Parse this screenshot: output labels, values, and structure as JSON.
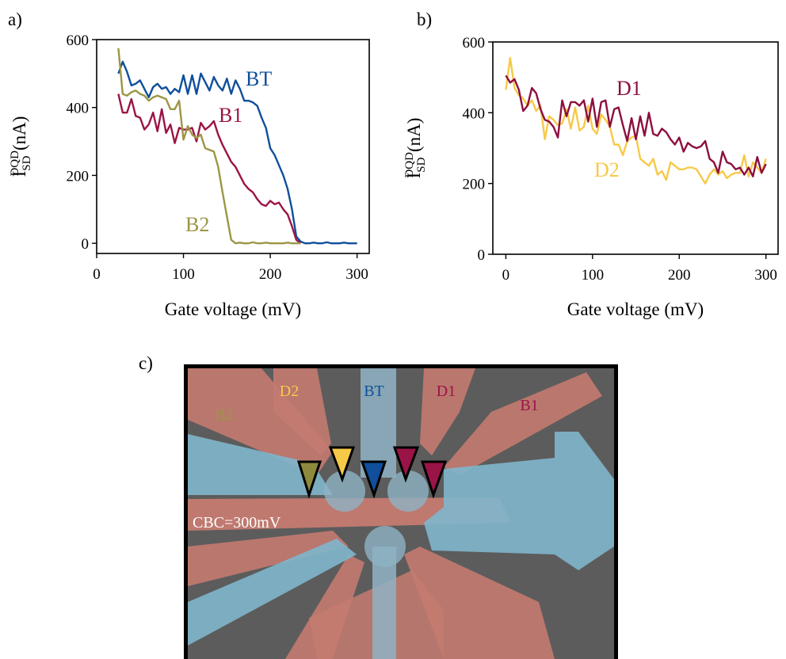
{
  "chart_data": [
    {
      "type": "line",
      "panel_label": "a)",
      "xlabel": "Gate voltage (mV)",
      "ylabel": {
        "base": "I",
        "sub": "SD",
        "sup": "DQD",
        "unit": "(nA)"
      },
      "xlim": [
        0,
        314
      ],
      "ylim": [
        -30,
        600
      ],
      "xticks": [
        0,
        100,
        200,
        300
      ],
      "yticks": [
        0,
        200,
        400,
        600
      ],
      "series": [
        {
          "name": "BT",
          "color": "#0f4f9c",
          "x": [
            25,
            30,
            35,
            40,
            45,
            50,
            55,
            60,
            65,
            70,
            75,
            80,
            85,
            90,
            95,
            100,
            105,
            110,
            115,
            120,
            125,
            130,
            135,
            140,
            145,
            150,
            155,
            160,
            165,
            170,
            175,
            180,
            185,
            190,
            195,
            200,
            205,
            210,
            215,
            220,
            225,
            230,
            235,
            240,
            245,
            250,
            255,
            260,
            265,
            270,
            275,
            280,
            285,
            290,
            295,
            300
          ],
          "values": [
            500,
            535,
            505,
            465,
            470,
            480,
            455,
            430,
            460,
            470,
            455,
            460,
            440,
            455,
            445,
            495,
            440,
            495,
            440,
            500,
            475,
            450,
            490,
            465,
            450,
            485,
            440,
            480,
            455,
            420,
            420,
            415,
            405,
            370,
            340,
            280,
            260,
            230,
            200,
            160,
            100,
            20,
            5,
            0,
            0,
            2,
            0,
            0,
            3,
            0,
            0,
            0,
            2,
            0,
            0,
            0
          ]
        },
        {
          "name": "B1",
          "color": "#9b1447",
          "x": [
            25,
            30,
            35,
            40,
            45,
            50,
            55,
            60,
            65,
            70,
            75,
            80,
            85,
            90,
            95,
            100,
            105,
            110,
            115,
            120,
            125,
            130,
            135,
            140,
            145,
            150,
            155,
            160,
            165,
            170,
            175,
            180,
            185,
            190,
            195,
            200,
            205,
            210,
            215,
            220,
            225,
            230,
            235
          ],
          "values": [
            440,
            385,
            385,
            425,
            375,
            370,
            335,
            350,
            385,
            330,
            395,
            325,
            350,
            295,
            340,
            335,
            335,
            340,
            300,
            355,
            335,
            345,
            360,
            320,
            290,
            265,
            240,
            225,
            200,
            175,
            160,
            150,
            130,
            115,
            110,
            125,
            115,
            120,
            100,
            85,
            50,
            10,
            0
          ]
        },
        {
          "name": "B2",
          "color": "#9c9645",
          "x": [
            25,
            30,
            35,
            40,
            45,
            50,
            55,
            60,
            65,
            70,
            75,
            80,
            85,
            90,
            95,
            100,
            105,
            110,
            115,
            120,
            125,
            130,
            135,
            140,
            145,
            150,
            155,
            160,
            165,
            170,
            175,
            180,
            185,
            190,
            195,
            200,
            205,
            210,
            215,
            220,
            225,
            230,
            235
          ],
          "values": [
            575,
            440,
            435,
            445,
            450,
            440,
            435,
            420,
            430,
            435,
            430,
            425,
            395,
            395,
            420,
            305,
            345,
            320,
            310,
            320,
            280,
            275,
            270,
            225,
            150,
            80,
            10,
            0,
            2,
            0,
            0,
            3,
            0,
            0,
            2,
            0,
            0,
            0,
            0,
            2,
            0,
            0,
            0
          ]
        }
      ]
    },
    {
      "type": "line",
      "panel_label": "b)",
      "xlabel": "Gate voltage (mV)",
      "ylabel": {
        "base": "I",
        "sub": "SD",
        "sup": "DQD",
        "unit": "(nA)"
      },
      "xlim": [
        -15,
        314
      ],
      "ylim": [
        0,
        600
      ],
      "xticks": [
        0,
        100,
        200,
        300
      ],
      "yticks": [
        0,
        200,
        400,
        600
      ],
      "x": [
        0,
        5,
        10,
        15,
        20,
        25,
        30,
        35,
        40,
        45,
        50,
        55,
        60,
        65,
        70,
        75,
        80,
        85,
        90,
        95,
        100,
        105,
        110,
        115,
        120,
        125,
        130,
        135,
        140,
        145,
        150,
        155,
        160,
        165,
        170,
        175,
        180,
        185,
        190,
        195,
        200,
        205,
        210,
        215,
        220,
        225,
        230,
        235,
        240,
        245,
        250,
        255,
        260,
        265,
        270,
        275,
        280,
        285,
        290,
        295,
        300
      ],
      "series": [
        {
          "name": "D2",
          "color": "#f7c948",
          "values": [
            465,
            555,
            470,
            450,
            440,
            420,
            435,
            405,
            420,
            325,
            390,
            380,
            365,
            370,
            410,
            355,
            415,
            350,
            360,
            420,
            355,
            340,
            395,
            380,
            360,
            310,
            310,
            280,
            320,
            330,
            335,
            270,
            260,
            250,
            270,
            225,
            235,
            210,
            260,
            250,
            240,
            240,
            245,
            245,
            240,
            220,
            200,
            225,
            240,
            225,
            235,
            215,
            225,
            230,
            230,
            280,
            220,
            260,
            245,
            230,
            270
          ]
        },
        {
          "name": "D1",
          "color": "#8c0f3e",
          "values": [
            505,
            485,
            495,
            465,
            405,
            420,
            470,
            455,
            410,
            380,
            375,
            360,
            330,
            435,
            390,
            430,
            430,
            420,
            435,
            375,
            440,
            360,
            430,
            435,
            360,
            410,
            415,
            365,
            320,
            385,
            325,
            390,
            335,
            400,
            340,
            335,
            355,
            345,
            325,
            310,
            330,
            290,
            315,
            305,
            300,
            305,
            320,
            270,
            260,
            230,
            290,
            260,
            255,
            240,
            245,
            225,
            245,
            220,
            275,
            230,
            255
          ]
        }
      ]
    }
  ],
  "panel_c": {
    "label": "c)",
    "gate_labels": [
      "D2",
      "BT",
      "D1",
      "B1",
      "B2"
    ],
    "bias_label": "CBC=300mV"
  }
}
